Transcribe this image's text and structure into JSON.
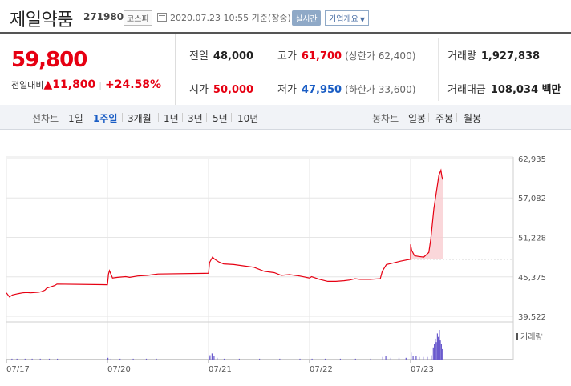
{
  "header": {
    "company": "제일약품",
    "code": "271980",
    "market": "코스피",
    "datetime": "2020.07.23 10:55 기준(장중)",
    "realtime": "실시간",
    "corp_info": "기업개요"
  },
  "quote": {
    "price": "59,800",
    "diff_label": "전일대비",
    "diff_arrow": "▲",
    "diff_value": "11,800",
    "diff_rate": "+24.58%",
    "prev_label": "전일",
    "prev": "48,000",
    "high_label": "고가",
    "high": "61,700",
    "upper_limit": "(상한가 62,400)",
    "volume_label": "거래량",
    "volume": "1,927,838",
    "open_label": "시가",
    "open": "50,000",
    "low_label": "저가",
    "low": "47,950",
    "lower_limit": "(하한가 33,600)",
    "amount_label": "거래대금",
    "amount": "108,034 백만"
  },
  "tabs": {
    "line_chart_label": "선차트",
    "periods": [
      "1일",
      "1주일",
      "3개월",
      "1년",
      "3년",
      "5년",
      "10년"
    ],
    "selected_period": "1주일",
    "candle_label": "봉차트",
    "candles": [
      "일봉",
      "주봉",
      "월봉"
    ]
  },
  "colors": {
    "rise": "#e60012",
    "fall": "#1a5dc4",
    "volume": "#6a5acd"
  },
  "chart_data": {
    "type": "line",
    "title": "",
    "volume_label": "거래량",
    "ylim": [
      39522,
      62935
    ],
    "y_ticks": [
      "62,935",
      "57,082",
      "51,228",
      "45,375",
      "39,522"
    ],
    "y_tick_values": [
      62935,
      57082,
      51228,
      45375,
      39522
    ],
    "x_ticks": [
      "07/17",
      "07/20",
      "07/21",
      "07/22",
      "07/23"
    ],
    "prev_close": 48000,
    "series": [
      {
        "name": "",
        "values": [
          [
            0.0,
            43000
          ],
          [
            0.03,
            42400
          ],
          [
            0.06,
            42700
          ],
          [
            0.09,
            42800
          ],
          [
            0.12,
            42900
          ],
          [
            0.16,
            43000
          ],
          [
            0.2,
            43050
          ],
          [
            0.24,
            43000
          ],
          [
            0.28,
            43050
          ],
          [
            0.32,
            43100
          ],
          [
            0.35,
            43200
          ],
          [
            0.38,
            43400
          ],
          [
            0.4,
            43700
          ],
          [
            0.44,
            43900
          ],
          [
            0.46,
            44000
          ],
          [
            0.48,
            44100
          ],
          [
            0.5,
            44300
          ],
          [
            1.0,
            44200
          ],
          [
            1.01,
            45800
          ],
          [
            1.02,
            46300
          ],
          [
            1.05,
            45200
          ],
          [
            1.1,
            45300
          ],
          [
            1.18,
            45400
          ],
          [
            1.22,
            45300
          ],
          [
            1.3,
            45500
          ],
          [
            1.4,
            45600
          ],
          [
            1.45,
            45700
          ],
          [
            1.5,
            45800
          ],
          [
            2.0,
            45900
          ],
          [
            2.01,
            47500
          ],
          [
            2.04,
            48300
          ],
          [
            2.06,
            48000
          ],
          [
            2.1,
            47600
          ],
          [
            2.15,
            47300
          ],
          [
            2.25,
            47200
          ],
          [
            2.35,
            47000
          ],
          [
            2.45,
            46800
          ],
          [
            2.55,
            46200
          ],
          [
            2.65,
            46000
          ],
          [
            2.72,
            45600
          ],
          [
            2.8,
            45700
          ],
          [
            2.9,
            45500
          ],
          [
            3.0,
            45200
          ],
          [
            3.02,
            45400
          ],
          [
            3.1,
            45000
          ],
          [
            3.18,
            44700
          ],
          [
            3.26,
            44700
          ],
          [
            3.34,
            44800
          ],
          [
            3.4,
            44900
          ],
          [
            3.45,
            45100
          ],
          [
            3.5,
            45000
          ],
          [
            3.6,
            45000
          ],
          [
            3.7,
            45100
          ],
          [
            3.72,
            46200
          ],
          [
            3.76,
            47200
          ],
          [
            3.82,
            47400
          ],
          [
            3.9,
            47700
          ],
          [
            4.0,
            48000
          ],
          [
            4.0,
            50200
          ],
          [
            4.01,
            49300
          ],
          [
            4.04,
            48500
          ],
          [
            4.08,
            48400
          ],
          [
            4.13,
            48300
          ],
          [
            4.18,
            49000
          ],
          [
            4.2,
            51000
          ],
          [
            4.23,
            55500
          ],
          [
            4.26,
            58500
          ],
          [
            4.28,
            60500
          ],
          [
            4.3,
            61200
          ],
          [
            4.31,
            60200
          ],
          [
            4.32,
            59800
          ]
        ]
      }
    ],
    "volume_bars": [
      [
        0.05,
        1
      ],
      [
        0.1,
        1
      ],
      [
        0.18,
        1
      ],
      [
        0.25,
        1
      ],
      [
        0.33,
        1
      ],
      [
        0.42,
        1
      ],
      [
        0.5,
        1
      ],
      [
        1.0,
        2
      ],
      [
        1.03,
        1
      ],
      [
        1.12,
        1
      ],
      [
        1.25,
        1
      ],
      [
        1.38,
        1
      ],
      [
        1.48,
        1
      ],
      [
        2.0,
        3
      ],
      [
        2.01,
        5
      ],
      [
        2.03,
        7
      ],
      [
        2.05,
        4
      ],
      [
        2.08,
        2
      ],
      [
        2.15,
        1
      ],
      [
        2.3,
        1
      ],
      [
        2.5,
        1
      ],
      [
        2.7,
        1
      ],
      [
        2.9,
        1
      ],
      [
        3.02,
        1
      ],
      [
        3.15,
        1
      ],
      [
        3.3,
        1
      ],
      [
        3.45,
        1
      ],
      [
        3.6,
        1
      ],
      [
        3.72,
        3
      ],
      [
        3.75,
        4
      ],
      [
        3.8,
        2
      ],
      [
        3.88,
        2
      ],
      [
        3.95,
        2
      ],
      [
        4.0,
        8
      ],
      [
        4.02,
        4
      ],
      [
        4.05,
        4
      ],
      [
        4.08,
        3
      ],
      [
        4.12,
        3
      ],
      [
        4.16,
        3
      ],
      [
        4.2,
        5
      ],
      [
        4.22,
        14
      ],
      [
        4.23,
        18
      ],
      [
        4.24,
        24
      ],
      [
        4.25,
        20
      ],
      [
        4.26,
        30
      ],
      [
        4.27,
        26
      ],
      [
        4.28,
        34
      ],
      [
        4.29,
        22
      ],
      [
        4.3,
        18
      ],
      [
        4.31,
        12
      ]
    ]
  }
}
